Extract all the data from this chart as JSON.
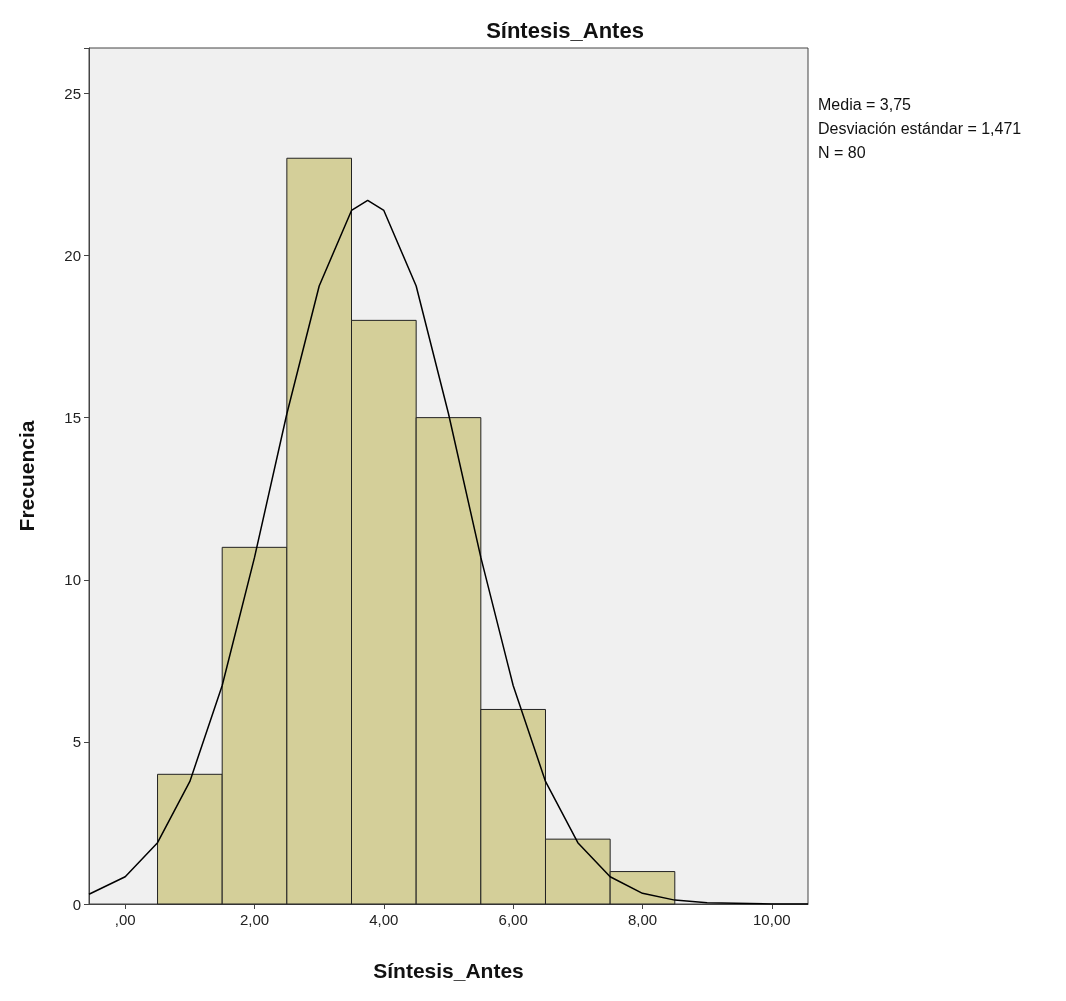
{
  "chart_data": {
    "type": "histogram",
    "title": "Síntesis_Antes",
    "xlabel": "Síntesis_Antes",
    "ylabel": "Frecuencia",
    "annotations": [
      "Media = 3,75",
      "Desviación estándar = 1,471",
      "N = 80"
    ],
    "series": [
      {
        "bins": [
          0.5,
          1.5,
          2.5,
          3.5,
          4.5,
          5.5,
          6.5,
          7.5,
          8.5
        ],
        "values": [
          4,
          11,
          23,
          18,
          15,
          6,
          2,
          1
        ],
        "color": "#d4cf99"
      },
      {
        "type": "line",
        "x": [
          -0.56,
          0,
          0.5,
          1,
          1.5,
          2,
          2.5,
          3,
          3.5,
          3.75,
          4,
          4.5,
          5,
          5.5,
          6,
          6.5,
          7,
          7.5,
          8,
          8.5,
          9,
          10,
          10.56
        ],
        "values": [
          0.3,
          0.84,
          1.89,
          3.78,
          6.74,
          10.69,
          15.12,
          19.06,
          21.39,
          21.7,
          21.39,
          19.06,
          15.12,
          10.69,
          6.74,
          3.78,
          1.89,
          0.84,
          0.33,
          0.12,
          0.04,
          0,
          0
        ],
        "color": "#000000",
        "marker": "none",
        "line_style": "solid"
      }
    ],
    "xlim": [
      -0.56,
      10.56
    ],
    "xticks": [
      {
        "value": 0,
        "label": ",00"
      },
      {
        "value": 2,
        "label": "2,00"
      },
      {
        "value": 4,
        "label": "4,00"
      },
      {
        "value": 6,
        "label": "6,00"
      },
      {
        "value": 8,
        "label": "8,00"
      },
      {
        "value": 10,
        "label": "10,00"
      }
    ],
    "ylim": [
      0,
      26.4
    ],
    "yticks": [
      0,
      5,
      10,
      15,
      20,
      25
    ],
    "grid": false
  }
}
